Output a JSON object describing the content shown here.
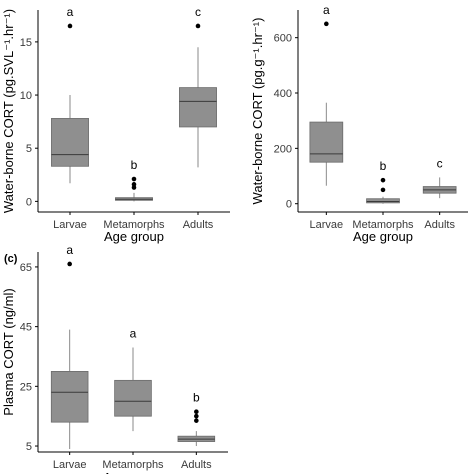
{
  "chart_data": [
    {
      "type": "box",
      "panel_label": "",
      "xlabel": "Age group",
      "ylabel": "Water-borne CORT (pg.SVL⁻¹.hr⁻¹)",
      "ylim": [
        -1,
        18
      ],
      "yticks": [
        0,
        5,
        10,
        15
      ],
      "grid": false,
      "categories": [
        "Larvae",
        "Metamorphs",
        "Adults"
      ],
      "boxes": [
        {
          "min": 1.7,
          "q1": 3.3,
          "median": 4.4,
          "q3": 7.8,
          "max": 10.0,
          "outliers": [
            16.5
          ],
          "letter": "a"
        },
        {
          "min": 0.0,
          "q1": 0.1,
          "median": 0.2,
          "q3": 0.35,
          "max": 0.8,
          "outliers": [
            1.3,
            1.6,
            2.1
          ],
          "letter": "b"
        },
        {
          "min": 3.2,
          "q1": 7.0,
          "median": 9.4,
          "q3": 10.7,
          "max": 14.5,
          "outliers": [
            16.5
          ],
          "letter": "c"
        }
      ]
    },
    {
      "type": "box",
      "panel_label": "",
      "xlabel": "Age group",
      "ylabel": "Water-borne CORT (pg.g⁻¹.hr⁻¹)",
      "ylim": [
        -30,
        700
      ],
      "yticks": [
        0,
        200,
        400,
        600
      ],
      "grid": false,
      "categories": [
        "Larvae",
        "Metamorphs",
        "Adults"
      ],
      "boxes": [
        {
          "min": 65,
          "q1": 150,
          "median": 180,
          "q3": 295,
          "max": 365,
          "outliers": [
            650
          ],
          "letter": "a"
        },
        {
          "min": 0,
          "q1": 3,
          "median": 8,
          "q3": 18,
          "max": 25,
          "outliers": [
            50,
            85
          ],
          "letter": "b"
        },
        {
          "min": 20,
          "q1": 38,
          "median": 50,
          "q3": 62,
          "max": 95,
          "outliers": [],
          "letter": "c"
        }
      ]
    },
    {
      "type": "box",
      "panel_label": "(c)",
      "xlabel": "Age group",
      "ylabel": "Plasma CORT (ng/ml)",
      "ylim": [
        3,
        70
      ],
      "yticks": [
        5,
        25,
        45,
        65
      ],
      "grid": false,
      "categories": [
        "Larvae",
        "Metamorphs",
        "Adults"
      ],
      "boxes": [
        {
          "min": 4,
          "q1": 13,
          "median": 23,
          "q3": 30,
          "max": 44,
          "outliers": [
            66
          ],
          "letter": "a"
        },
        {
          "min": 10,
          "q1": 15,
          "median": 20,
          "q3": 27,
          "max": 38,
          "outliers": [],
          "letter": "a"
        },
        {
          "min": 5,
          "q1": 6.5,
          "median": 7.3,
          "q3": 8.3,
          "max": 10,
          "outliers": [
            13.5,
            15,
            16.5
          ],
          "letter": "b"
        }
      ]
    }
  ],
  "style": {
    "box_fill": "#8f8f8f",
    "box_stroke": "#6b6b6b",
    "median_stroke": "#3a3a3a",
    "whisker_stroke": "#8a8a8a",
    "axis_stroke": "#000000",
    "tick_text": "#3a3a3a",
    "outlier_fill": "#000000"
  }
}
